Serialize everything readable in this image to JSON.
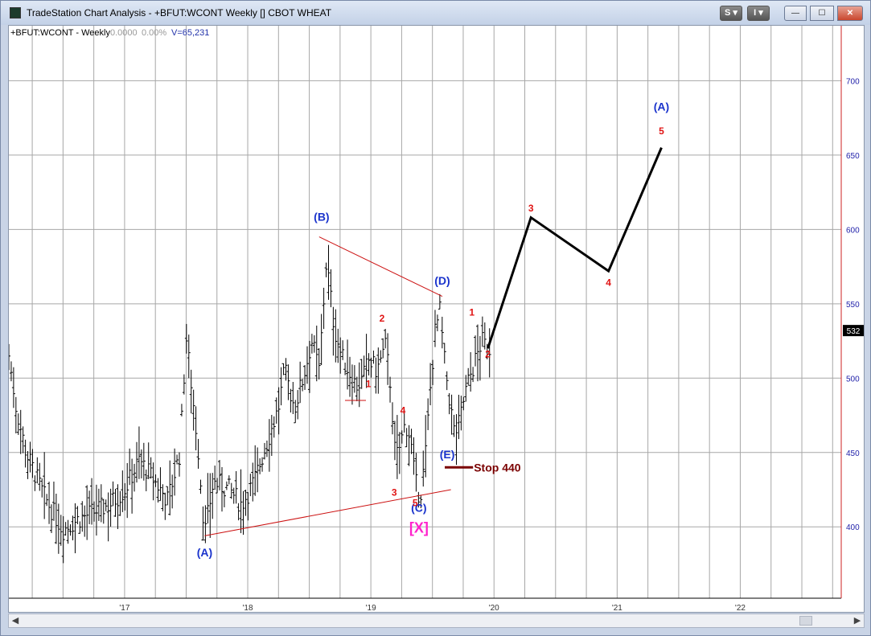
{
  "window": {
    "title": "TradeStation Chart Analysis - +BFUT:WCONT Weekly [] CBOT WHEAT",
    "s_button": "S",
    "i_button": "I",
    "minimize": "—",
    "maximize": "☐",
    "close": "✕"
  },
  "header": {
    "symbol": "+BFUT:WCONT - Weekly",
    "change": "0.0000",
    "pct": "0.00%",
    "volume": "V=65,231"
  },
  "colors": {
    "price_axis": "#2222aa",
    "bars": "#000000",
    "wave_blue": "#1a33cc",
    "wave_red": "#e01414",
    "wave_x": "#ff22cc",
    "stop": "#7a0000",
    "trendline": "#cc1111",
    "grid": "#a7a7a7",
    "right_border": "#cc2222",
    "last_price_bg": "#000000"
  },
  "chart_data": {
    "type": "ohlc-bar",
    "y_ticks": [
      400,
      450,
      500,
      550,
      600,
      650,
      700
    ],
    "ylim": [
      352,
      737
    ],
    "x_ticks": [
      "'17",
      "'18",
      "'19",
      "'20",
      "'21",
      "'22"
    ],
    "xlim": [
      2016.06,
      2022.82
    ],
    "last_price": "532",
    "close_path": [
      [
        2016.06,
        515
      ],
      [
        2016.12,
        480
      ],
      [
        2016.2,
        450
      ],
      [
        2016.35,
        420
      ],
      [
        2016.5,
        398
      ],
      [
        2016.62,
        405
      ],
      [
        2016.75,
        410
      ],
      [
        2016.88,
        415
      ],
      [
        2017.0,
        425
      ],
      [
        2017.12,
        445
      ],
      [
        2017.25,
        430
      ],
      [
        2017.35,
        418
      ],
      [
        2017.45,
        450
      ],
      [
        2017.5,
        528
      ],
      [
        2017.55,
        490
      ],
      [
        2017.6,
        450
      ],
      [
        2017.65,
        395
      ],
      [
        2017.72,
        430
      ],
      [
        2017.85,
        425
      ],
      [
        2017.95,
        415
      ],
      [
        2018.05,
        430
      ],
      [
        2018.15,
        455
      ],
      [
        2018.25,
        480
      ],
      [
        2018.3,
        505
      ],
      [
        2018.38,
        480
      ],
      [
        2018.45,
        500
      ],
      [
        2018.52,
        525
      ],
      [
        2018.58,
        505
      ],
      [
        2018.64,
        580
      ],
      [
        2018.7,
        535
      ],
      [
        2018.76,
        515
      ],
      [
        2018.82,
        505
      ],
      [
        2018.88,
        495
      ],
      [
        2018.93,
        498
      ],
      [
        2018.98,
        512
      ],
      [
        2019.05,
        505
      ],
      [
        2019.12,
        522
      ],
      [
        2019.16,
        495
      ],
      [
        2019.2,
        445
      ],
      [
        2019.24,
        455
      ],
      [
        2019.28,
        470
      ],
      [
        2019.32,
        460
      ],
      [
        2019.36,
        430
      ],
      [
        2019.4,
        420
      ],
      [
        2019.44,
        445
      ],
      [
        2019.48,
        490
      ],
      [
        2019.52,
        530
      ],
      [
        2019.56,
        545
      ],
      [
        2019.6,
        510
      ],
      [
        2019.64,
        485
      ],
      [
        2019.68,
        462
      ],
      [
        2019.72,
        470
      ],
      [
        2019.76,
        488
      ],
      [
        2019.8,
        500
      ],
      [
        2019.85,
        512
      ],
      [
        2019.9,
        525
      ],
      [
        2019.95,
        520
      ],
      [
        2019.97,
        520
      ]
    ],
    "projection": [
      [
        2019.95,
        520
      ],
      [
        2020.3,
        608
      ],
      [
        2020.93,
        572
      ],
      [
        2021.36,
        655
      ]
    ],
    "trendlines": [
      {
        "from": [
          2018.58,
          595
        ],
        "to": [
          2019.58,
          555
        ]
      },
      {
        "from": [
          2017.65,
          394
        ],
        "to": [
          2019.65,
          425
        ]
      }
    ],
    "stop": {
      "label": "Stop 440",
      "level": 440,
      "from": 2019.6,
      "to": 2019.83
    },
    "wave_labels": [
      {
        "text": "(A)",
        "x": 2017.65,
        "y": 380,
        "color": "wave_blue"
      },
      {
        "text": "(B)",
        "x": 2018.6,
        "y": 606,
        "color": "wave_blue"
      },
      {
        "text": "(C)",
        "x": 2019.39,
        "y": 410,
        "color": "wave_blue"
      },
      {
        "text": "[X]",
        "x": 2019.39,
        "y": 396,
        "color": "wave_x"
      },
      {
        "text": "(D)",
        "x": 2019.58,
        "y": 563,
        "color": "wave_blue"
      },
      {
        "text": "(E)",
        "x": 2019.62,
        "y": 446,
        "color": "wave_blue"
      },
      {
        "text": "(A)",
        "x": 2021.36,
        "y": 680,
        "color": "wave_blue"
      },
      {
        "text": "1",
        "x": 2018.98,
        "y": 494,
        "color": "wave_red"
      },
      {
        "text": "2",
        "x": 2019.09,
        "y": 538,
        "color": "wave_red"
      },
      {
        "text": "3",
        "x": 2019.19,
        "y": 421,
        "color": "wave_red"
      },
      {
        "text": "4",
        "x": 2019.26,
        "y": 476,
        "color": "wave_red"
      },
      {
        "text": "5",
        "x": 2019.36,
        "y": 414,
        "color": "wave_red"
      },
      {
        "text": "1",
        "x": 2019.82,
        "y": 542,
        "color": "wave_red"
      },
      {
        "text": "2",
        "x": 2019.95,
        "y": 514,
        "color": "wave_red"
      },
      {
        "text": "3",
        "x": 2020.3,
        "y": 612,
        "color": "wave_red"
      },
      {
        "text": "4",
        "x": 2020.93,
        "y": 562,
        "color": "wave_red"
      },
      {
        "text": "5",
        "x": 2021.36,
        "y": 664,
        "color": "wave_red"
      }
    ],
    "support_marks": [
      {
        "x1": 2018.79,
        "x2": 2018.96,
        "y": 485
      }
    ]
  }
}
